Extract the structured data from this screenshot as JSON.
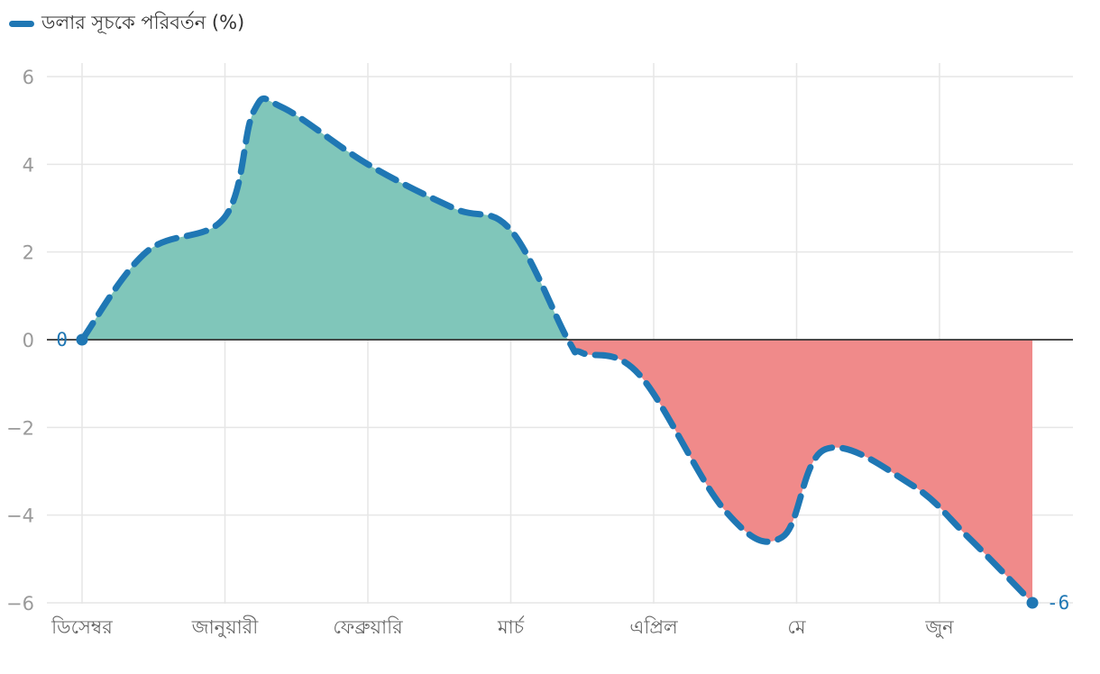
{
  "chart_data": {
    "type": "area",
    "legend": "ডলার সূচকে পরিবর্তন (%)",
    "x_labels": [
      "ডিসেম্বর",
      "জানুয়ারী",
      "ফেব্রুয়ারি",
      "মার্চ",
      "এপ্রিল",
      "মে",
      "জুন"
    ],
    "x_range": [
      0,
      6.8
    ],
    "y_ticks": [
      6,
      4,
      2,
      0,
      -2,
      -4,
      -6
    ],
    "y_tick_labels": [
      "6",
      "4",
      "2",
      "0",
      "−2",
      "−4",
      "−6"
    ],
    "ylim": [
      -6,
      6.3
    ],
    "series": [
      {
        "name": "ডলার সূচকে পরিবর্তন (%)",
        "points": [
          [
            0.0,
            0.0
          ],
          [
            0.45,
            2.0
          ],
          [
            1.0,
            2.8
          ],
          [
            1.2,
            5.2
          ],
          [
            1.4,
            5.3
          ],
          [
            2.0,
            4.0
          ],
          [
            2.6,
            3.0
          ],
          [
            3.0,
            2.5
          ],
          [
            3.4,
            0.0
          ],
          [
            3.5,
            -0.3
          ],
          [
            3.9,
            -0.8
          ],
          [
            4.5,
            -3.9
          ],
          [
            4.9,
            -4.5
          ],
          [
            5.2,
            -2.5
          ],
          [
            5.8,
            -3.3
          ],
          [
            6.2,
            -4.5
          ],
          [
            6.65,
            -6.0
          ]
        ],
        "start_label": "0",
        "end_label": "-6"
      }
    ],
    "colors": {
      "line": "#1f77b4",
      "positive_fill": "#80c6ba",
      "negative_fill": "#f08a8a",
      "grid": "#e6e6e6",
      "zero_line": "#333333"
    }
  }
}
